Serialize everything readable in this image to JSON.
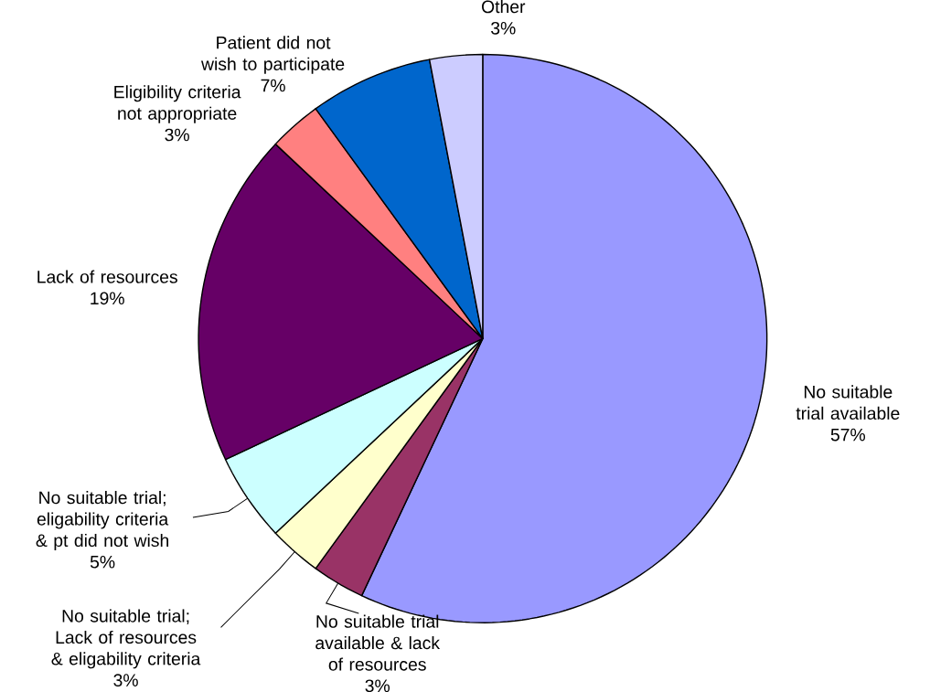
{
  "chart_data": {
    "type": "pie",
    "categories": [
      "No suitable trial available",
      "No suitable trial available & lack of resources",
      "No suitable trial; Lack of resources & eligability criteria",
      "No suitable trial; eligability criteria & pt did not wish",
      "Lack of resources",
      "Eligibility criteria not appropriate",
      "Patient did not wish to participate",
      "Other"
    ],
    "values": [
      57,
      3,
      3,
      5,
      19,
      3,
      7,
      3
    ],
    "value_labels": [
      "57%",
      "3%",
      "3%",
      "5%",
      "19%",
      "3%",
      "7%",
      "3%"
    ],
    "colors": [
      "#9999ff",
      "#993366",
      "#ffffcc",
      "#ccffff",
      "#660066",
      "#ff8080",
      "#0066cc",
      "#ccccff"
    ]
  }
}
